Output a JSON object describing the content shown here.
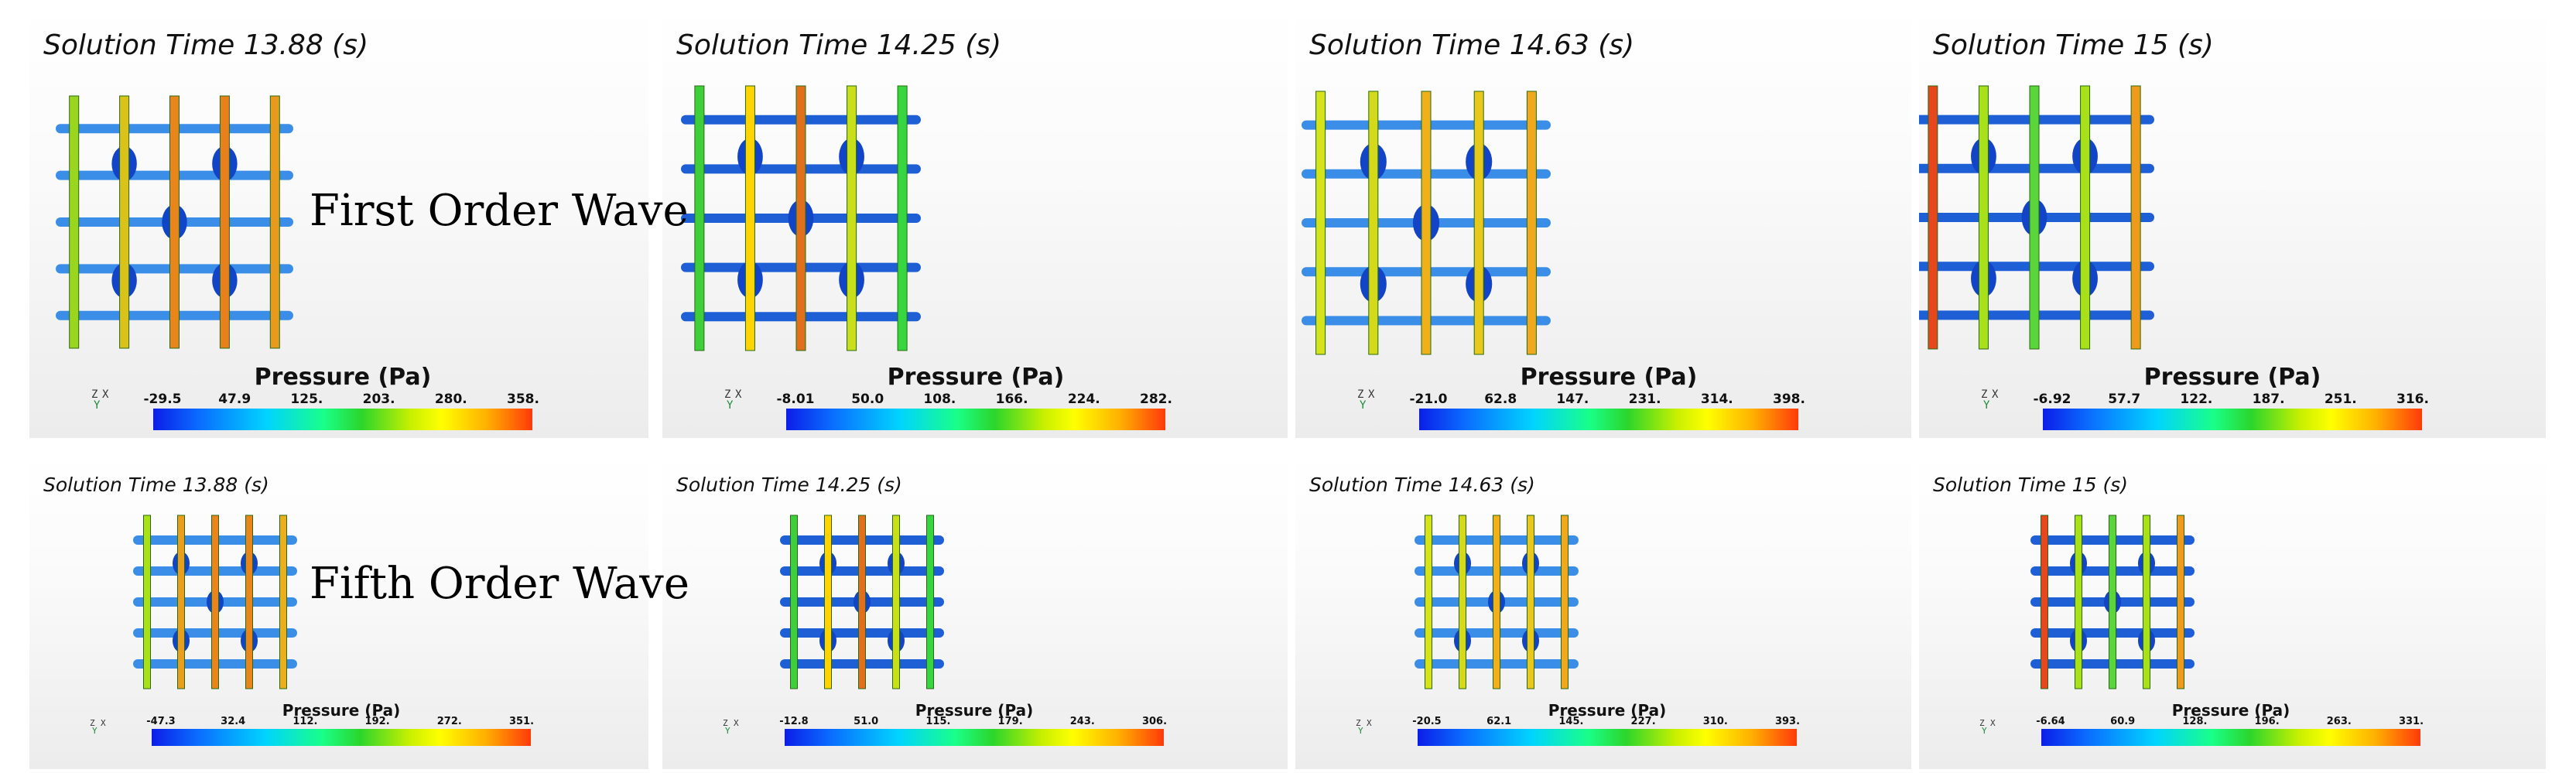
{
  "row_labels": [
    "First Order Wave",
    "Fifth Order Wave"
  ],
  "colorbar_title": "Pressure (Pa)",
  "axis_labels": {
    "z": "Z",
    "x": "X",
    "y": "Y"
  },
  "colors": {
    "deck_blue": "#1f5fd6",
    "palette": [
      "#0b1ee8",
      "#0a6cff",
      "#00d4ff",
      "#19ff88",
      "#2bd62b",
      "#c8f000",
      "#ffff00",
      "#ffb000",
      "#ff3a0a"
    ]
  },
  "panels": [
    {
      "title": "Solution Time 13.88 (s)",
      "ticks": [
        "-29.5",
        "47.9",
        "125.",
        "203.",
        "280.",
        "358."
      ],
      "rods": [
        "#9ad61e",
        "#d9c21a",
        "#e8861c",
        "#e8801c",
        "#e89a1c"
      ]
    },
    {
      "title": "Solution Time 14.25 (s)",
      "ticks": [
        "-8.01",
        "50.0",
        "108.",
        "166.",
        "224.",
        "282."
      ],
      "rods": [
        "#3fcf3a",
        "#ffd400",
        "#e0701c",
        "#c8e01a",
        "#37d640"
      ]
    },
    {
      "title": "Solution Time 14.63 (s)",
      "ticks": [
        "-21.0",
        "62.8",
        "147.",
        "231.",
        "314.",
        "398."
      ],
      "rods": [
        "#d6e21a",
        "#d4da1a",
        "#f0b01a",
        "#e8c81a",
        "#f0a81c"
      ]
    },
    {
      "title": "Solution Time 15 (s)",
      "ticks": [
        "-6.92",
        "57.7",
        "122.",
        "187.",
        "251.",
        "316."
      ],
      "rods": [
        "#e8461c",
        "#a8e01a",
        "#5ad63a",
        "#a8e01a",
        "#f09a1c"
      ]
    },
    {
      "title": "Solution Time 13.88 (s)",
      "ticks": [
        "-47.3",
        "32.4",
        "112.",
        "192.",
        "272.",
        "351."
      ],
      "rods": [
        "#a8e01a",
        "#e8a01c",
        "#e8861c",
        "#e8861c",
        "#e8b01c"
      ]
    },
    {
      "title": "Solution Time 14.25 (s)",
      "ticks": [
        "-12.8",
        "51.0",
        "115.",
        "179.",
        "243.",
        "306."
      ],
      "rods": [
        "#3fcf3a",
        "#ffd400",
        "#e0701c",
        "#c8e01a",
        "#37d640"
      ]
    },
    {
      "title": "Solution Time 14.63 (s)",
      "ticks": [
        "-20.5",
        "62.1",
        "145.",
        "227.",
        "310.",
        "393."
      ],
      "rods": [
        "#d6e21a",
        "#d4da1a",
        "#f0b01a",
        "#e8c81a",
        "#f0a81c"
      ]
    },
    {
      "title": "Solution Time 15 (s)",
      "ticks": [
        "-6.64",
        "60.9",
        "128.",
        "196.",
        "263.",
        "331."
      ],
      "rods": [
        "#e8461c",
        "#a8e01a",
        "#5ad63a",
        "#a8e01a",
        "#f09a1c"
      ]
    }
  ]
}
